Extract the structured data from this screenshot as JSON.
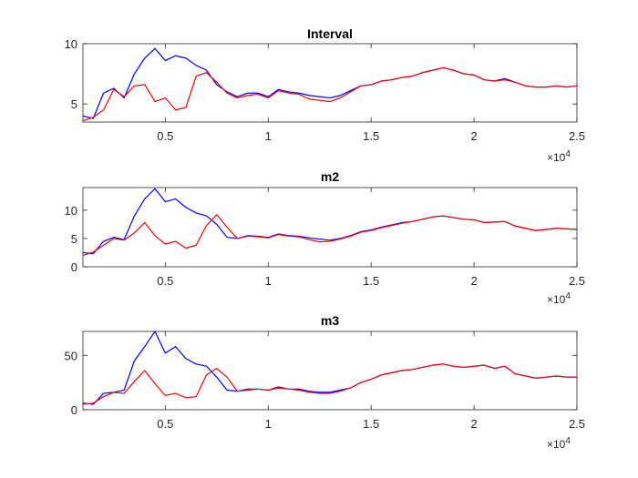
{
  "chart_data": [
    {
      "type": "line",
      "title": "Interval",
      "xlim": [
        1000,
        25000
      ],
      "ylim": [
        3.5,
        10
      ],
      "xticks": [
        5000,
        10000,
        15000,
        20000,
        25000
      ],
      "xtick_labels": [
        "0.5",
        "1",
        "1.5",
        "2",
        "2.5"
      ],
      "yticks": [
        5,
        10
      ],
      "ytick_labels": [
        "5",
        "10"
      ],
      "x_exponent_label": "×10",
      "x_exponent_power": "4",
      "series": [
        {
          "color": "#0000ff",
          "x": [
            1000,
            1500,
            2000,
            2500,
            3000,
            3500,
            4000,
            4500,
            5000,
            5500,
            6000,
            6500,
            7000,
            7500,
            8000,
            8500,
            9000,
            9500,
            10000,
            10500,
            11000,
            11500,
            12000,
            12500,
            13000,
            13500,
            14000,
            14500,
            15000,
            15500,
            16000,
            16500,
            17000,
            17500,
            18000,
            18500,
            19000,
            19500,
            20000,
            20500,
            21000,
            21500,
            22000,
            22500,
            23000,
            23500,
            24000,
            24500,
            25000
          ],
          "y": [
            4.0,
            3.8,
            5.9,
            6.3,
            5.5,
            7.5,
            8.8,
            9.6,
            8.6,
            9.0,
            8.8,
            8.2,
            7.8,
            6.6,
            6.0,
            5.6,
            5.9,
            5.9,
            5.6,
            6.2,
            6.0,
            5.9,
            5.7,
            5.6,
            5.5,
            5.7,
            6.1,
            6.5,
            6.6,
            6.9,
            7.0,
            7.2,
            7.3,
            7.6,
            7.8,
            8.0,
            7.8,
            7.5,
            7.4,
            7.0,
            6.9,
            7.1,
            6.8,
            6.5,
            6.4,
            6.4,
            6.5,
            6.4,
            6.5
          ]
        },
        {
          "color": "#ff0000",
          "x": [
            1000,
            1500,
            2000,
            2500,
            3000,
            3500,
            4000,
            4500,
            5000,
            5500,
            6000,
            6500,
            7000,
            7500,
            8000,
            8500,
            9000,
            9500,
            10000,
            10500,
            11000,
            11500,
            12000,
            12500,
            13000,
            13500,
            14000,
            14500,
            15000,
            15500,
            16000,
            16500,
            17000,
            17500,
            18000,
            18500,
            19000,
            19500,
            20000,
            20500,
            21000,
            21500,
            22000,
            22500,
            23000,
            23500,
            24000,
            24500,
            25000
          ],
          "y": [
            3.6,
            3.9,
            4.5,
            6.2,
            5.6,
            6.5,
            6.6,
            5.2,
            5.5,
            4.5,
            4.7,
            7.3,
            7.6,
            6.8,
            5.9,
            5.5,
            5.7,
            5.8,
            5.5,
            6.1,
            5.9,
            5.8,
            5.4,
            5.3,
            5.2,
            5.5,
            6.0,
            6.5,
            6.6,
            6.9,
            7.0,
            7.2,
            7.3,
            7.6,
            7.8,
            8.0,
            7.8,
            7.5,
            7.4,
            7.0,
            6.9,
            7.0,
            6.8,
            6.5,
            6.4,
            6.4,
            6.5,
            6.4,
            6.5
          ]
        }
      ]
    },
    {
      "type": "line",
      "title": "m2",
      "xlim": [
        1000,
        25000
      ],
      "ylim": [
        0,
        14
      ],
      "xticks": [
        5000,
        10000,
        15000,
        20000,
        25000
      ],
      "xtick_labels": [
        "0.5",
        "1",
        "1.5",
        "2",
        "2.5"
      ],
      "yticks": [
        0,
        5,
        10
      ],
      "ytick_labels": [
        "0",
        "5",
        "10"
      ],
      "x_exponent_label": "×10",
      "x_exponent_power": "4",
      "series": [
        {
          "color": "#0000ff",
          "x": [
            1000,
            1500,
            2000,
            2500,
            3000,
            3500,
            4000,
            4500,
            5000,
            5500,
            6000,
            6500,
            7000,
            7500,
            8000,
            8500,
            9000,
            9500,
            10000,
            10500,
            11000,
            11500,
            12000,
            12500,
            13000,
            13500,
            14000,
            14500,
            15000,
            15500,
            16000,
            16500,
            17000,
            17500,
            18000,
            18500,
            19000,
            19500,
            20000,
            20500,
            21000,
            21500,
            22000,
            22500,
            23000,
            23500,
            24000,
            24500,
            25000
          ],
          "y": [
            2.5,
            2.3,
            4.5,
            5.2,
            4.8,
            9.0,
            12.0,
            13.8,
            11.5,
            12.0,
            10.5,
            9.5,
            9.0,
            7.5,
            5.2,
            5.0,
            5.5,
            5.4,
            5.2,
            5.8,
            5.5,
            5.4,
            5.1,
            4.9,
            4.7,
            5.0,
            5.5,
            6.2,
            6.5,
            7.0,
            7.4,
            7.8,
            8.0,
            8.4,
            8.8,
            9.0,
            8.7,
            8.4,
            8.3,
            7.8,
            7.9,
            8.0,
            7.2,
            6.8,
            6.4,
            6.6,
            6.8,
            6.7,
            6.6
          ]
        },
        {
          "color": "#ff0000",
          "x": [
            1000,
            1500,
            2000,
            2500,
            3000,
            3500,
            4000,
            4500,
            5000,
            5500,
            6000,
            6500,
            7000,
            7500,
            8000,
            8500,
            9000,
            9500,
            10000,
            10500,
            11000,
            11500,
            12000,
            12500,
            13000,
            13500,
            14000,
            14500,
            15000,
            15500,
            16000,
            16500,
            17000,
            17500,
            18000,
            18500,
            19000,
            19500,
            20000,
            20500,
            21000,
            21500,
            22000,
            22500,
            23000,
            23500,
            24000,
            24500,
            25000
          ],
          "y": [
            2.0,
            2.6,
            3.8,
            5.0,
            4.7,
            6.0,
            7.8,
            5.5,
            4.0,
            4.5,
            3.3,
            3.8,
            7.3,
            9.2,
            7.0,
            5.0,
            5.4,
            5.3,
            5.1,
            5.7,
            5.4,
            5.3,
            4.8,
            4.4,
            4.5,
            4.9,
            5.4,
            6.1,
            6.4,
            6.9,
            7.3,
            7.7,
            8.0,
            8.4,
            8.8,
            9.0,
            8.7,
            8.4,
            8.3,
            7.8,
            7.9,
            8.0,
            7.2,
            6.8,
            6.4,
            6.6,
            6.8,
            6.7,
            6.6
          ]
        }
      ]
    },
    {
      "type": "line",
      "title": "m3",
      "xlim": [
        1000,
        25000
      ],
      "ylim": [
        0,
        72
      ],
      "xticks": [
        5000,
        10000,
        15000,
        20000,
        25000
      ],
      "xtick_labels": [
        "0.5",
        "1",
        "1.5",
        "2",
        "2.5"
      ],
      "yticks": [
        0,
        50
      ],
      "ytick_labels": [
        "0",
        "50"
      ],
      "x_exponent_label": "×10",
      "x_exponent_power": "4",
      "series": [
        {
          "color": "#0000ff",
          "x": [
            1000,
            1500,
            2000,
            2500,
            3000,
            3500,
            4000,
            4500,
            5000,
            5500,
            6000,
            6500,
            7000,
            7500,
            8000,
            8500,
            9000,
            9500,
            10000,
            10500,
            11000,
            11500,
            12000,
            12500,
            13000,
            13500,
            14000,
            14500,
            15000,
            15500,
            16000,
            16500,
            17000,
            17500,
            18000,
            18500,
            19000,
            19500,
            20000,
            20500,
            21000,
            21500,
            22000,
            22500,
            23000,
            23500,
            24000,
            24500,
            25000
          ],
          "y": [
            6,
            5,
            15,
            16,
            18,
            45,
            58,
            72,
            52,
            58,
            47,
            42,
            40,
            30,
            18,
            17,
            19,
            19,
            18,
            21,
            19,
            19,
            17,
            16,
            16,
            18,
            20,
            25,
            28,
            32,
            34,
            36,
            37,
            39,
            41,
            42,
            40,
            39,
            40,
            41,
            38,
            40,
            33,
            31,
            29,
            30,
            31,
            30,
            30
          ]
        },
        {
          "color": "#ff0000",
          "x": [
            1000,
            1500,
            2000,
            2500,
            3000,
            3500,
            4000,
            4500,
            5000,
            5500,
            6000,
            6500,
            7000,
            7500,
            8000,
            8500,
            9000,
            9500,
            10000,
            10500,
            11000,
            11500,
            12000,
            12500,
            13000,
            13500,
            14000,
            14500,
            15000,
            15500,
            16000,
            16500,
            17000,
            17500,
            18000,
            18500,
            19000,
            19500,
            20000,
            20500,
            21000,
            21500,
            22000,
            22500,
            23000,
            23500,
            24000,
            24500,
            25000
          ],
          "y": [
            5,
            6,
            12,
            16,
            15,
            26,
            36,
            24,
            13,
            15,
            11,
            12,
            32,
            38,
            30,
            17,
            18,
            19,
            18,
            20,
            19,
            18,
            16,
            15,
            15,
            17,
            20,
            25,
            28,
            32,
            34,
            36,
            37,
            39,
            41,
            42,
            40,
            39,
            40,
            41,
            38,
            40,
            33,
            31,
            29,
            30,
            31,
            30,
            30
          ]
        }
      ]
    }
  ]
}
